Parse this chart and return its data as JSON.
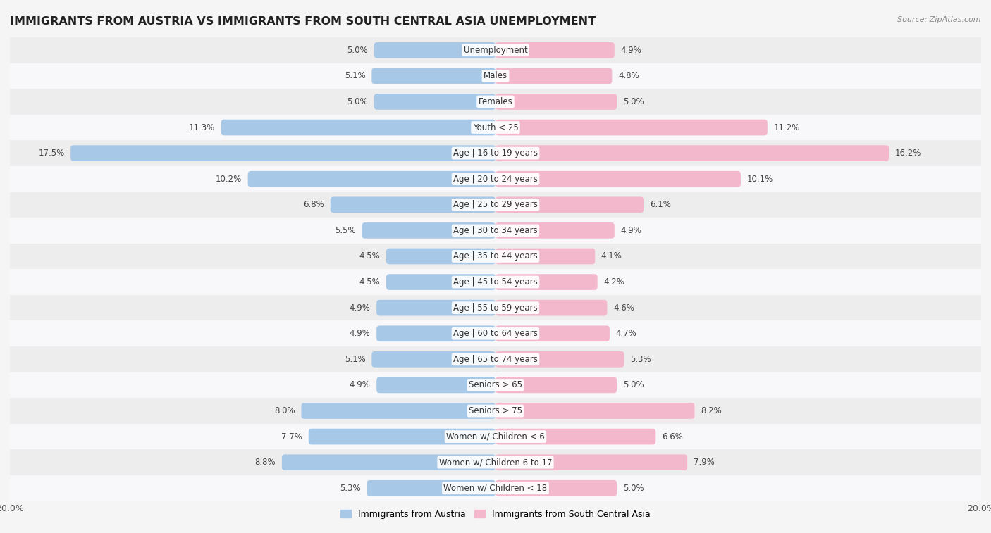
{
  "title": "IMMIGRANTS FROM AUSTRIA VS IMMIGRANTS FROM SOUTH CENTRAL ASIA UNEMPLOYMENT",
  "source": "Source: ZipAtlas.com",
  "categories": [
    "Unemployment",
    "Males",
    "Females",
    "Youth < 25",
    "Age | 16 to 19 years",
    "Age | 20 to 24 years",
    "Age | 25 to 29 years",
    "Age | 30 to 34 years",
    "Age | 35 to 44 years",
    "Age | 45 to 54 years",
    "Age | 55 to 59 years",
    "Age | 60 to 64 years",
    "Age | 65 to 74 years",
    "Seniors > 65",
    "Seniors > 75",
    "Women w/ Children < 6",
    "Women w/ Children 6 to 17",
    "Women w/ Children < 18"
  ],
  "left_values": [
    5.0,
    5.1,
    5.0,
    11.3,
    17.5,
    10.2,
    6.8,
    5.5,
    4.5,
    4.5,
    4.9,
    4.9,
    5.1,
    4.9,
    8.0,
    7.7,
    8.8,
    5.3
  ],
  "right_values": [
    4.9,
    4.8,
    5.0,
    11.2,
    16.2,
    10.1,
    6.1,
    4.9,
    4.1,
    4.2,
    4.6,
    4.7,
    5.3,
    5.0,
    8.2,
    6.6,
    7.9,
    5.0
  ],
  "left_color": "#a8c8e8",
  "right_color": "#f4b8cc",
  "left_label": "Immigrants from Austria",
  "right_label": "Immigrants from South Central Asia",
  "xlim": 20.0,
  "bar_height": 0.62,
  "row_even_color": "#ededee",
  "row_odd_color": "#f8f8fa",
  "fig_bg_color": "#f5f5f6",
  "title_fontsize": 11.5,
  "cat_fontsize": 8.5,
  "value_fontsize": 8.5,
  "source_fontsize": 8,
  "legend_fontsize": 9
}
